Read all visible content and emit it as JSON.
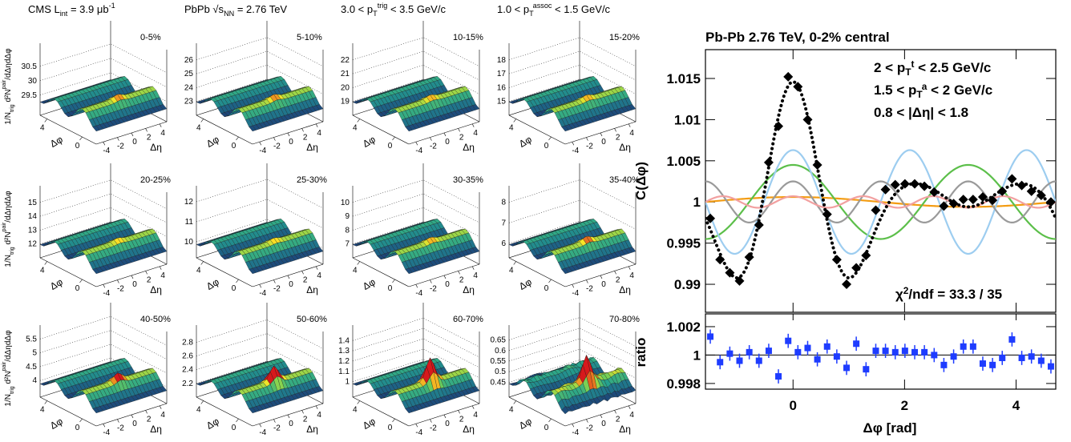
{
  "chart_data": [
    {
      "type": "surface_grid",
      "header": [
        [
          {
            "text": "CMS L"
          },
          {
            "text": "int",
            "pos": "sub"
          },
          {
            "text": " = 3.9 μb"
          },
          {
            "text": "-1",
            "pos": "sup"
          }
        ],
        [
          {
            "text": "PbPb √s"
          },
          {
            "text": "NN",
            "pos": "sub"
          },
          {
            "text": " = 2.76 TeV"
          }
        ],
        [
          {
            "text": "3.0 < p"
          },
          {
            "text": "T",
            "pos": "sub"
          },
          {
            "text": "trig",
            "pos": "sup"
          },
          {
            "text": " < 3.5 GeV/c"
          }
        ],
        [
          {
            "text": "1.0 < p"
          },
          {
            "text": "T",
            "pos": "sub"
          },
          {
            "text": "assoc",
            "pos": "sup"
          },
          {
            "text": " < 1.5 GeV/c"
          }
        ]
      ],
      "zlabel": [
        {
          "text": "1/N"
        },
        {
          "text": "trig",
          "pos": "sub"
        },
        {
          "text": " d²N"
        },
        {
          "text": "pair",
          "pos": "sup"
        },
        {
          "text": "/dΔηdΔφ"
        }
      ],
      "xlabel": "Δη",
      "ylabel": "Δφ",
      "xlim": [
        -5,
        5
      ],
      "ylim": [
        -1.6,
        4.8
      ],
      "xticks": [
        -4,
        -2,
        0,
        2,
        4
      ],
      "yticks": [
        0,
        4
      ],
      "panels": [
        {
          "title": "0-5%",
          "zlim": [
            28.8,
            31.3
          ],
          "zticks": [
            29.5,
            30,
            30.5
          ]
        },
        {
          "title": "5-10%",
          "zlim": [
            22,
            27.2
          ],
          "zticks": [
            23,
            24,
            25,
            26
          ]
        },
        {
          "title": "10-15%",
          "zlim": [
            18,
            23.2
          ],
          "zticks": [
            19,
            20,
            21,
            22
          ]
        },
        {
          "title": "15-20%",
          "zlim": [
            14,
            19.2
          ],
          "zticks": [
            15,
            16,
            17,
            18
          ]
        },
        {
          "title": "20-25%",
          "zlim": [
            11,
            16.2
          ],
          "zticks": [
            12,
            13,
            14,
            15
          ]
        },
        {
          "title": "25-30%",
          "zlim": [
            9.2,
            12.8
          ],
          "zticks": [
            10,
            11,
            12
          ]
        },
        {
          "title": "30-35%",
          "zlim": [
            6,
            11.2
          ],
          "zticks": [
            7,
            8,
            9,
            10
          ]
        },
        {
          "title": "35-40%",
          "zlim": [
            5.3,
            8.8
          ],
          "zticks": [
            6,
            7,
            8
          ]
        },
        {
          "title": "40-50%",
          "zlim": [
            3.4,
            6.0
          ],
          "zticks": [
            4,
            4.5,
            5,
            5.5
          ]
        },
        {
          "title": "50-60%",
          "zlim": [
            2.0,
            3.05
          ],
          "zticks": [
            2.2,
            2.4,
            2.6,
            2.8
          ]
        },
        {
          "title": "60-70%",
          "zlim": [
            0.85,
            1.55
          ],
          "zticks": [
            1,
            1.1,
            1.2,
            1.3,
            1.4
          ]
        },
        {
          "title": "70-80%",
          "zlim": [
            0.38,
            0.72
          ],
          "zticks": [
            0.45,
            0.5,
            0.55,
            0.6,
            0.65
          ]
        }
      ]
    },
    {
      "type": "scatter",
      "title": "Pb-Pb 2.76 TeV, 0-2% central",
      "annotations": [
        [
          {
            "text": "2 < p"
          },
          {
            "text": "T",
            "pos": "sub"
          },
          {
            "text": "t",
            "pos": "sup"
          },
          {
            "text": " < 2.5 GeV/c"
          }
        ],
        [
          {
            "text": "1.5 < p"
          },
          {
            "text": "T",
            "pos": "sub"
          },
          {
            "text": "a",
            "pos": "sup"
          },
          {
            "text": " < 2 GeV/c"
          }
        ],
        [
          {
            "text": "0.8 < |Δη| < 1.8"
          }
        ]
      ],
      "chi2": [
        {
          "text": "χ"
        },
        {
          "text": "2",
          "pos": "sup"
        },
        {
          "text": "/ndf = 33.3 / 35"
        }
      ],
      "ylabel": "C(Δφ)",
      "xlim": [
        -1.571,
        4.712
      ],
      "ylim": [
        0.9866,
        1.0185
      ],
      "yticks": [
        0.99,
        0.995,
        1,
        1.005,
        1.01,
        1.015
      ],
      "x": [
        -1.484,
        -1.309,
        -1.134,
        -0.96,
        -0.785,
        -0.611,
        -0.436,
        -0.262,
        -0.087,
        0.087,
        0.262,
        0.436,
        0.611,
        0.785,
        0.96,
        1.134,
        1.309,
        1.484,
        1.658,
        1.833,
        2.007,
        2.182,
        2.356,
        2.531,
        2.705,
        2.88,
        3.054,
        3.229,
        3.403,
        3.578,
        3.752,
        3.927,
        4.102,
        4.276,
        4.451,
        4.625
      ],
      "values": [
        0.998,
        0.993,
        0.9914,
        0.9904,
        0.9933,
        0.9972,
        1.0048,
        1.0092,
        1.0152,
        1.014,
        1.01,
        1.0045,
        0.9985,
        0.993,
        0.99,
        0.992,
        0.9935,
        0.999,
        1.0015,
        1.0021,
        1.0022,
        1.0022,
        1.0019,
        1.0012,
        0.9995,
        0.9998,
        1.0003,
        1.0003,
        1.0006,
        1.0002,
        1.0013,
        1.0028,
        1.002,
        1.0013,
        1.0008,
        1.0
      ],
      "errors": [
        0.0004,
        0.0004,
        0.0004,
        0.0004,
        0.0004,
        0.0004,
        0.0004,
        0.0004,
        0.0004,
        0.0004,
        0.0004,
        0.0004,
        0.0004,
        0.0004,
        0.0004,
        0.0004,
        0.0004,
        0.0004,
        0.0004,
        0.0004,
        0.0004,
        0.0004,
        0.0004,
        0.0004,
        0.0004,
        0.0004,
        0.0004,
        0.0004,
        0.0004,
        0.0004,
        0.0004,
        0.0004,
        0.0004,
        0.0004,
        0.0004,
        0.0004
      ],
      "color": "#000000",
      "harmonics": [
        {
          "n": 1,
          "amplitude": 0.0006,
          "color": "#f39c12"
        },
        {
          "n": 2,
          "amplitude": 0.0045,
          "color": "#5cbf4a"
        },
        {
          "n": 3,
          "amplitude": 0.0063,
          "color": "#9dcdf0"
        },
        {
          "n": 4,
          "amplitude": 0.0025,
          "color": "#9a9a9a"
        },
        {
          "n": 5,
          "amplitude": 0.0007,
          "color": "#f2a0a0"
        }
      ],
      "fit_color": "#000000"
    },
    {
      "type": "ratio",
      "ylabel": "ratio",
      "xlabel": "Δφ [rad]",
      "xlim": [
        -1.571,
        4.712
      ],
      "ylim": [
        0.9976,
        1.0029
      ],
      "xticks": [
        0,
        2,
        4
      ],
      "yticks": [
        0.998,
        1,
        1.002
      ],
      "reference": 1,
      "values": [
        1.0013,
        0.9995,
        1.0001,
        0.9996,
        1.0002,
        0.9996,
        1.0003,
        0.9985,
        1.001,
        1.0002,
        1.0005,
        0.9997,
        1.0006,
        0.9999,
        0.9991,
        1.0008,
        0.999,
        1.0003,
        1.0003,
        1.0002,
        1.0003,
        1.0002,
        1.0002,
        1.0,
        0.9993,
        0.9999,
        1.0006,
        1.0006,
        0.9994,
        0.9993,
        0.9998,
        1.0011,
        0.9998,
        0.9999,
        0.9996,
        0.9992
      ],
      "errors": [
        0.0005,
        0.0005,
        0.0005,
        0.0005,
        0.0005,
        0.0005,
        0.0005,
        0.0005,
        0.0005,
        0.0005,
        0.0005,
        0.0005,
        0.0005,
        0.0005,
        0.0005,
        0.0005,
        0.0005,
        0.0005,
        0.0005,
        0.0005,
        0.0005,
        0.0005,
        0.0005,
        0.0005,
        0.0005,
        0.0005,
        0.0005,
        0.0005,
        0.0005,
        0.0005,
        0.0005,
        0.0005,
        0.0005,
        0.0005,
        0.0005,
        0.0005
      ],
      "color": "#1e3cff"
    }
  ]
}
